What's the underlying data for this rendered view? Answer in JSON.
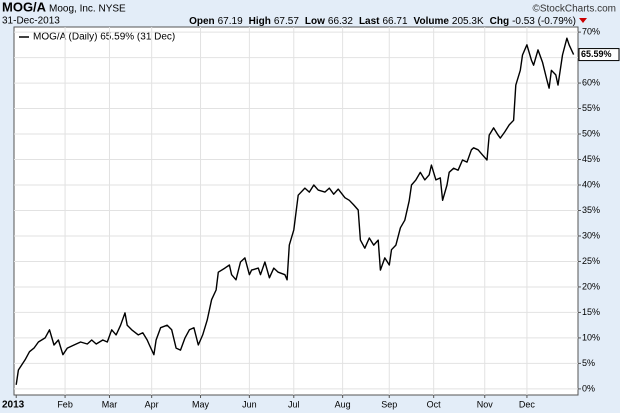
{
  "header": {
    "symbol": "MOG/A",
    "company": "Moog, Inc. NYSE",
    "source": "©StockCharts.com",
    "date": "31-Dec-2013",
    "quote": [
      {
        "label": "Open",
        "value": "67.19"
      },
      {
        "label": "High",
        "value": "67.57"
      },
      {
        "label": "Low",
        "value": "66.32"
      },
      {
        "label": "Last",
        "value": "66.71"
      },
      {
        "label": "Volume",
        "value": "205.3K"
      },
      {
        "label": "Chg",
        "value": "-0.53 (-0.79%)"
      }
    ]
  },
  "chart_data": {
    "type": "line",
    "legend": "MOG/A (Daily) 65.59% (31 Dec)",
    "series": [
      {
        "name": "MOG/A",
        "color": "#000000",
        "x": [
          0,
          1,
          4,
          6,
          8,
          10,
          13,
          15,
          17,
          19,
          21,
          23,
          26,
          29,
          32,
          34,
          36,
          39,
          41,
          43,
          45,
          47,
          49,
          50,
          52,
          55,
          57,
          59,
          60,
          62,
          63,
          65,
          68,
          70,
          72,
          74,
          76,
          78,
          80,
          82,
          84,
          86,
          88,
          90,
          91,
          94,
          96,
          97,
          99,
          101,
          103,
          105,
          106,
          109,
          110,
          112,
          114,
          116,
          118,
          121,
          122,
          123,
          125,
          127,
          130,
          132,
          134,
          136,
          139,
          141,
          143,
          145,
          148,
          150,
          152,
          154,
          155,
          157,
          159,
          161,
          163,
          164,
          166,
          168,
          169,
          171,
          173,
          175,
          177,
          178,
          180,
          182,
          184,
          186,
          187,
          189,
          191,
          192,
          194,
          195,
          197,
          199,
          201,
          203,
          205,
          206,
          208,
          210,
          212,
          213,
          215,
          217,
          218,
          220,
          222,
          224,
          225,
          227,
          228,
          230,
          232,
          233,
          235,
          237,
          239,
          240,
          241,
          243,
          244,
          246,
          248,
          249,
          251
        ],
        "values": [
          0.8,
          3.7,
          5.7,
          7.3,
          8,
          9.2,
          10,
          11.6,
          8.6,
          9.6,
          6.7,
          8,
          8.6,
          9.2,
          8.8,
          9.6,
          8.8,
          9.6,
          9.2,
          11.6,
          10.6,
          12.5,
          14.9,
          12.5,
          11.6,
          10.6,
          11,
          9.6,
          8.6,
          6.7,
          9.6,
          12,
          12.5,
          11.6,
          8,
          7.6,
          10,
          11.6,
          12,
          8.6,
          10.6,
          13.5,
          17.5,
          19.4,
          22.9,
          23.7,
          24.3,
          22.4,
          21.4,
          24.9,
          25.7,
          22.4,
          23.3,
          23.7,
          22.4,
          24.9,
          21.8,
          23.7,
          22.9,
          22.4,
          21.4,
          28.2,
          31.2,
          38,
          39.4,
          38.6,
          40,
          39,
          38.6,
          39.4,
          38.2,
          39.2,
          37.5,
          37,
          36.1,
          35.1,
          29.2,
          27.6,
          29.6,
          28.2,
          29.2,
          23.3,
          25.7,
          24.3,
          27.3,
          28.2,
          31.6,
          33.1,
          36.9,
          40,
          41,
          42.5,
          41,
          42,
          43.9,
          41,
          41.4,
          37,
          40,
          42.5,
          43.3,
          42.9,
          44.9,
          44.5,
          46.9,
          47.3,
          46.9,
          45.9,
          44.9,
          49.8,
          51.2,
          49.8,
          49.2,
          50.4,
          51.8,
          52.7,
          59.6,
          62.5,
          65.5,
          67.5,
          64.5,
          63.5,
          66.5,
          64.1,
          60.6,
          59,
          62.5,
          61.6,
          59.6,
          65.5,
          68.8,
          67.5,
          65.59
        ]
      }
    ],
    "last_label": {
      "value": 65.59,
      "label": "65.59%"
    },
    "xlim": [
      -1,
      253
    ],
    "xticks": [
      {
        "value": 0,
        "label": "2013"
      },
      {
        "value": 22,
        "label": "Feb"
      },
      {
        "value": 42,
        "label": "Mar"
      },
      {
        "value": 61,
        "label": "Apr"
      },
      {
        "value": 83,
        "label": "May"
      },
      {
        "value": 105,
        "label": "Jun"
      },
      {
        "value": 125,
        "label": "Jul"
      },
      {
        "value": 147,
        "label": "Aug"
      },
      {
        "value": 168,
        "label": "Sep"
      },
      {
        "value": 188,
        "label": "Oct"
      },
      {
        "value": 211,
        "label": "Nov"
      },
      {
        "value": 230,
        "label": "Dec"
      }
    ],
    "ylim": [
      -1.2,
      71
    ],
    "yticks": [
      {
        "value": 0,
        "label": "0%"
      },
      {
        "value": 5,
        "label": "5%"
      },
      {
        "value": 10,
        "label": "10%"
      },
      {
        "value": 15,
        "label": "15%"
      },
      {
        "value": 20,
        "label": "20%"
      },
      {
        "value": 25,
        "label": "25%"
      },
      {
        "value": 30,
        "label": "30%"
      },
      {
        "value": 35,
        "label": "35%"
      },
      {
        "value": 40,
        "label": "40%"
      },
      {
        "value": 45,
        "label": "45%"
      },
      {
        "value": 50,
        "label": "50%"
      },
      {
        "value": 55,
        "label": "55%"
      },
      {
        "value": 60,
        "label": "60%"
      },
      {
        "value": 65,
        "label": "65%"
      },
      {
        "value": 70,
        "label": "70%"
      }
    ],
    "grid": true
  }
}
